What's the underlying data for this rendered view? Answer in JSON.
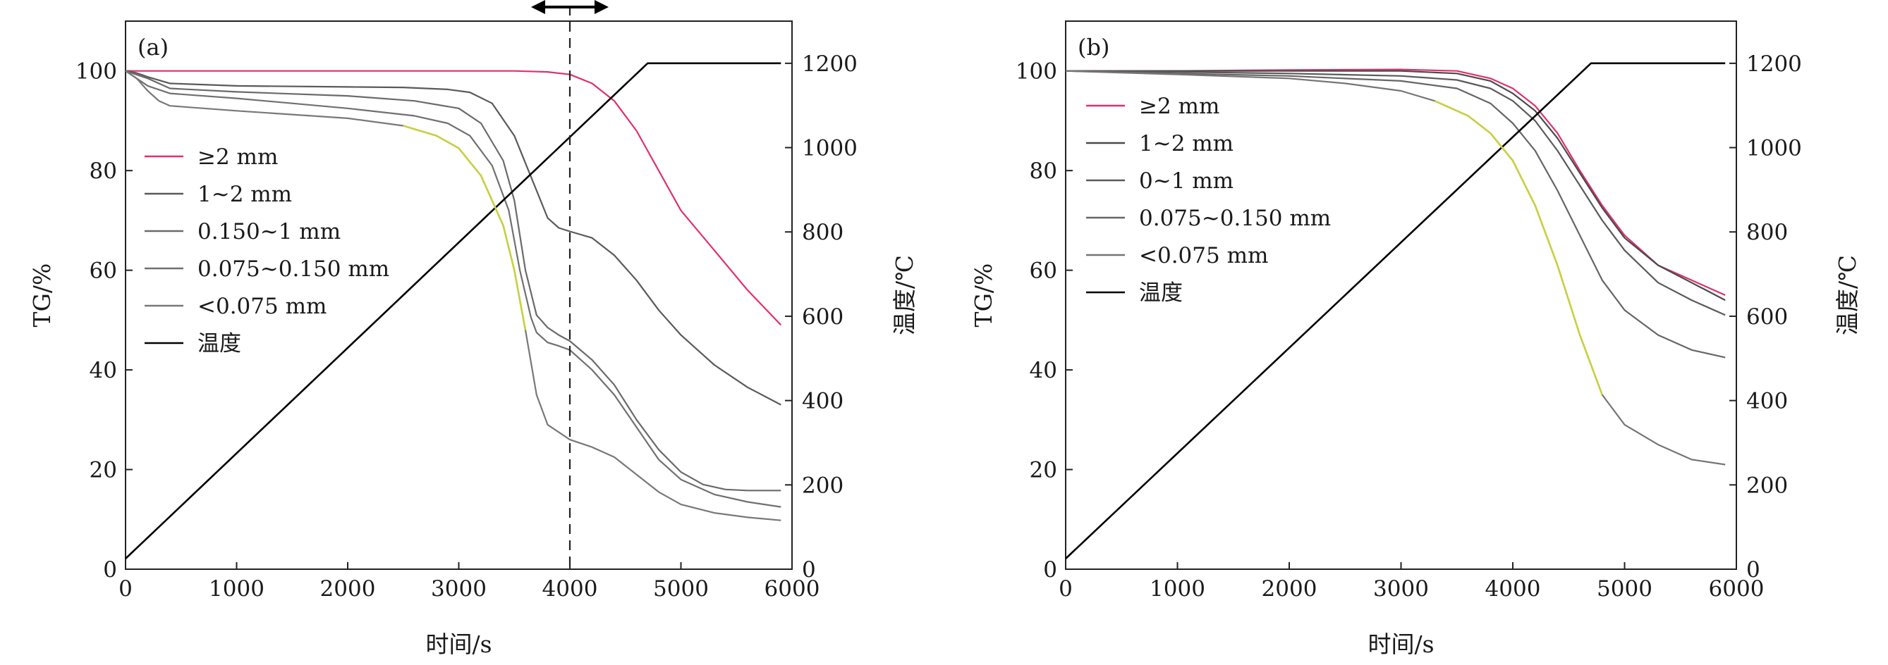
{
  "chart_data": [
    {
      "type": "line",
      "panel_label": "(a)",
      "xlabel": "时间/s",
      "ylabel": "TG/%",
      "y2label": "温度/℃",
      "xlim": [
        0,
        6000
      ],
      "ylim": [
        0,
        110
      ],
      "y2lim": [
        0,
        1300
      ],
      "xticks": [
        0,
        1000,
        2000,
        3000,
        4000,
        5000,
        6000
      ],
      "yticks": [
        0,
        20,
        40,
        60,
        80,
        100
      ],
      "y2ticks": [
        0,
        200,
        400,
        600,
        800,
        1000,
        1200
      ],
      "legend_position": "left",
      "grid": false,
      "annotations": {
        "vline_x": 4000,
        "vline_style": "dashed",
        "arrow": "double-headed arrow above the dashed line"
      },
      "series": [
        {
          "name": "≥2 mm",
          "color": "#e0306a",
          "axis": "left",
          "x": [
            0,
            500,
            1000,
            2000,
            3000,
            3500,
            3800,
            4000,
            4200,
            4400,
            4600,
            4800,
            5000,
            5300,
            5600,
            5900
          ],
          "y": [
            100,
            100,
            100,
            100,
            100,
            100,
            99.8,
            99.3,
            97.5,
            94,
            88,
            80,
            72,
            64,
            56,
            49
          ]
        },
        {
          "name": "1~2 mm",
          "color": "#5a5a5a",
          "axis": "left",
          "x": [
            0,
            100,
            200,
            400,
            1000,
            2000,
            2500,
            2900,
            3100,
            3300,
            3500,
            3700,
            3800,
            3900,
            4000,
            4200,
            4400,
            4600,
            4800,
            5000,
            5300,
            5600,
            5900
          ],
          "y": [
            100,
            99.6,
            98.8,
            97.5,
            97,
            96.8,
            96.7,
            96.3,
            95.7,
            93.5,
            87,
            76,
            70.5,
            68.5,
            67.8,
            66.5,
            63,
            58,
            52,
            47,
            41,
            36.5,
            33
          ]
        },
        {
          "name": "0.150~1 mm",
          "color": "#6a6a6a",
          "axis": "left",
          "x": [
            0,
            200,
            400,
            1000,
            2000,
            2600,
            3000,
            3200,
            3400,
            3500,
            3600,
            3700,
            3800,
            3900,
            4000,
            4200,
            4400,
            4600,
            4800,
            5000,
            5200,
            5400,
            5600,
            5900
          ],
          "y": [
            100,
            98.5,
            96.5,
            95.8,
            95,
            94,
            92.5,
            89.5,
            82,
            74,
            60,
            51,
            48.5,
            47,
            45.8,
            42,
            37,
            30,
            24,
            19.5,
            17,
            16,
            15.8,
            15.8
          ]
        },
        {
          "name": "0.075~0.150 mm",
          "color": "#707070",
          "axis": "left",
          "x": [
            0,
            200,
            400,
            1000,
            2000,
            2600,
            2900,
            3100,
            3300,
            3450,
            3550,
            3650,
            3700,
            3800,
            3900,
            4000,
            4200,
            4400,
            4600,
            4800,
            5000,
            5300,
            5600,
            5900
          ],
          "y": [
            100,
            97,
            95.5,
            94.5,
            92.5,
            91,
            89.5,
            87,
            81,
            72,
            60,
            50.5,
            47.5,
            45.5,
            44.8,
            44,
            40,
            35,
            28.5,
            22,
            18,
            15,
            13.5,
            12.5
          ]
        },
        {
          "name": "<0.075 mm",
          "color": "#787878",
          "axis": "left",
          "x": [
            0,
            100,
            200,
            300,
            400,
            1000,
            2000,
            2500,
            2800,
            3000,
            3200,
            3400,
            3500,
            3600,
            3700,
            3800,
            4000,
            4200,
            4400,
            4600,
            4800,
            5000,
            5300,
            5600,
            5900
          ],
          "y": [
            100,
            98.5,
            96,
            94,
            93,
            92,
            90.5,
            89,
            87,
            84.5,
            79,
            69,
            60,
            48,
            35,
            29,
            26,
            24.5,
            22.5,
            19,
            15.5,
            13,
            11.3,
            10.4,
            9.8
          ]
        },
        {
          "name": "温度",
          "color": "#000000",
          "axis": "right",
          "x": [
            0,
            4700,
            5900
          ],
          "y": [
            25,
            1200,
            1200
          ]
        }
      ],
      "highlight": {
        "color": "#c8d040",
        "on": "<0.075 mm",
        "x_range": [
          2500,
          3600
        ]
      }
    },
    {
      "type": "line",
      "panel_label": "(b)",
      "xlabel": "时间/s",
      "ylabel": "TG/%",
      "y2label": "温度/℃",
      "xlim": [
        0,
        6000
      ],
      "ylim": [
        0,
        110
      ],
      "y2lim": [
        0,
        1300
      ],
      "xticks": [
        0,
        1000,
        2000,
        3000,
        4000,
        5000,
        6000
      ],
      "yticks": [
        0,
        20,
        40,
        60,
        80,
        100
      ],
      "y2ticks": [
        0,
        200,
        400,
        600,
        800,
        1000,
        1200
      ],
      "legend_position": "left",
      "grid": false,
      "series": [
        {
          "name": "≥2 mm",
          "color": "#e0306a",
          "axis": "left",
          "x": [
            0,
            1000,
            2000,
            3000,
            3500,
            3800,
            4000,
            4200,
            4400,
            4600,
            4800,
            5000,
            5300,
            5600,
            5900
          ],
          "y": [
            100,
            100,
            100.2,
            100.3,
            100,
            98.5,
            96.5,
            93,
            87.5,
            80,
            73,
            67,
            61,
            58,
            55
          ]
        },
        {
          "name": "1~2 mm",
          "color": "#4a4a4a",
          "axis": "left",
          "x": [
            0,
            1000,
            2000,
            3000,
            3500,
            3800,
            4000,
            4200,
            4400,
            4600,
            4800,
            5000,
            5300,
            5600,
            5900
          ],
          "y": [
            100,
            100,
            100,
            100,
            99.5,
            98,
            95.5,
            92,
            86.5,
            79.5,
            72.5,
            66.5,
            61,
            57.5,
            54
          ]
        },
        {
          "name": "0~1 mm",
          "color": "#5a5a5a",
          "axis": "left",
          "x": [
            0,
            1000,
            2000,
            3000,
            3500,
            3800,
            4000,
            4200,
            4400,
            4600,
            4800,
            5000,
            5300,
            5600,
            5900
          ],
          "y": [
            100,
            99.8,
            99.5,
            99,
            98.2,
            96.5,
            94,
            90,
            84,
            77,
            70,
            64,
            57.5,
            54,
            51
          ]
        },
        {
          "name": "0.075~0.150 mm",
          "color": "#666666",
          "axis": "left",
          "x": [
            0,
            1000,
            2000,
            3000,
            3500,
            3800,
            4000,
            4200,
            4400,
            4600,
            4800,
            5000,
            5300,
            5600,
            5900
          ],
          "y": [
            100,
            99.5,
            99,
            98,
            96.5,
            93.5,
            89.5,
            84,
            76,
            67,
            58,
            52,
            47,
            44,
            42.5
          ]
        },
        {
          "name": "<0.075 mm",
          "color": "#757575",
          "axis": "left",
          "x": [
            0,
            1000,
            2000,
            2500,
            3000,
            3300,
            3600,
            3800,
            4000,
            4200,
            4400,
            4600,
            4800,
            5000,
            5300,
            5600,
            5900
          ],
          "y": [
            100,
            99.3,
            98.5,
            97.5,
            96,
            94,
            91,
            87.5,
            82,
            73,
            61,
            47,
            35,
            29,
            25,
            22,
            21
          ]
        },
        {
          "name": "温度",
          "color": "#000000",
          "axis": "right",
          "x": [
            0,
            4700,
            5900
          ],
          "y": [
            25,
            1200,
            1200
          ]
        }
      ],
      "highlight": {
        "color": "#c8d040",
        "on": "<0.075 mm",
        "x_range": [
          3200,
          4900
        ]
      }
    }
  ]
}
